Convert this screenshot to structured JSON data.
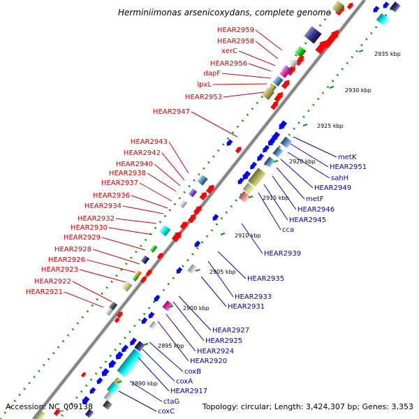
{
  "title": "Herminiimonas arsenicoxydans, complete genome",
  "footer": {
    "accession": "Accession: NC_009138",
    "topology": "Topology: circular; Length: 3,424,307 bp; Genes: 3,353"
  },
  "kbp_marks": [
    "2935 kbp",
    "2930 kbp",
    "2925 kbp",
    "2920 kbp",
    "2915 kbp",
    "2910 kbp",
    "2905 kbp",
    "2900 kbp",
    "2895 kbp",
    "2890 kbp"
  ],
  "left_labels": [
    "HEAR2959",
    "HEAR2958",
    "xerC",
    "HEAR2956",
    "dapF",
    "lpxL",
    "HEAR2953",
    "HEAR2947",
    "HEAR2943",
    "HEAR2942",
    "HEAR2940",
    "HEAR2938",
    "HEAR2937",
    "HEAR2936",
    "HEAR2934",
    "HEAR2932",
    "HEAR2930",
    "HEAR2929",
    "HEAR2928",
    "HEAR2926",
    "HEAR2923",
    "HEAR2922",
    "HEAR2921"
  ],
  "right_labels": [
    "metK",
    "HEAR2951",
    "sahH",
    "HEAR2949",
    "metF",
    "HEAR2946",
    "HEAR2945",
    "cca",
    "HEAR2939",
    "HEAR2935",
    "HEAR2933",
    "HEAR2931",
    "HEAR2927",
    "HEAR2925",
    "HEAR2924",
    "HEAR2920",
    "coxB",
    "coxA",
    "HEAR2917",
    "ctaG",
    "coxC"
  ],
  "colors": {
    "forward_gene": "#ff0000",
    "reverse_gene": "#0000ff",
    "backbone": "#999999",
    "kbp_tick": "#009900",
    "left_label": "#cc0000",
    "right_label": "#0000aa"
  }
}
